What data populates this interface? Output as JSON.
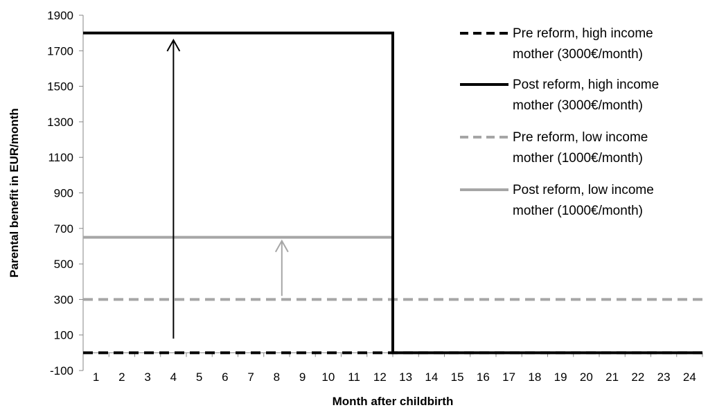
{
  "chart_data": {
    "type": "line",
    "title": "",
    "xlabel": "Month after childbirth",
    "ylabel": "Parental benefit in EUR/month",
    "x": [
      1,
      2,
      3,
      4,
      5,
      6,
      7,
      8,
      9,
      10,
      11,
      12,
      13,
      14,
      15,
      16,
      17,
      18,
      19,
      20,
      21,
      22,
      23,
      24
    ],
    "ylim": [
      -100,
      1900
    ],
    "yticks": [
      -100,
      100,
      300,
      500,
      700,
      900,
      1100,
      1300,
      1500,
      1700,
      1900
    ],
    "grid": false,
    "legend_position": "top-right",
    "series": [
      {
        "name": "Pre reform, high income mother (3000€/month)",
        "name_lines": [
          "Pre reform, high income",
          "mother (3000€/month)"
        ],
        "color": "#000000",
        "style": "dashed",
        "values": [
          0,
          0,
          0,
          0,
          0,
          0,
          0,
          0,
          0,
          0,
          0,
          0,
          0,
          0,
          0,
          0,
          0,
          0,
          0,
          0,
          0,
          0,
          0,
          0
        ]
      },
      {
        "name": "Post reform, high income mother (3000€/month)",
        "name_lines": [
          "Post reform, high income",
          "mother (3000€/month)"
        ],
        "color": "#000000",
        "style": "solid",
        "values": [
          1800,
          1800,
          1800,
          1800,
          1800,
          1800,
          1800,
          1800,
          1800,
          1800,
          1800,
          1800,
          0,
          0,
          0,
          0,
          0,
          0,
          0,
          0,
          0,
          0,
          0,
          0
        ]
      },
      {
        "name": "Pre reform, low income mother (1000€/month)",
        "name_lines": [
          "Pre reform, low income",
          "mother (1000€/month)"
        ],
        "color": "#a6a6a6",
        "style": "dashed",
        "values": [
          300,
          300,
          300,
          300,
          300,
          300,
          300,
          300,
          300,
          300,
          300,
          300,
          300,
          300,
          300,
          300,
          300,
          300,
          300,
          300,
          300,
          300,
          300,
          300
        ]
      },
      {
        "name": "Post reform, low income mother (1000€/month)",
        "name_lines": [
          "Post reform, low income",
          "mother (1000€/month)"
        ],
        "color": "#a6a6a6",
        "style": "solid",
        "values": [
          650,
          650,
          650,
          650,
          650,
          650,
          650,
          650,
          650,
          650,
          650,
          650,
          0,
          0,
          0,
          0,
          0,
          0,
          0,
          0,
          0,
          0,
          0,
          0
        ]
      }
    ],
    "annotations": [
      {
        "type": "arrow",
        "color": "#000000",
        "x": 4,
        "y_from": 80,
        "y_to": 1760
      },
      {
        "type": "arrow",
        "color": "#a6a6a6",
        "x": 8.2,
        "y_from": 320,
        "y_to": 630
      }
    ]
  }
}
